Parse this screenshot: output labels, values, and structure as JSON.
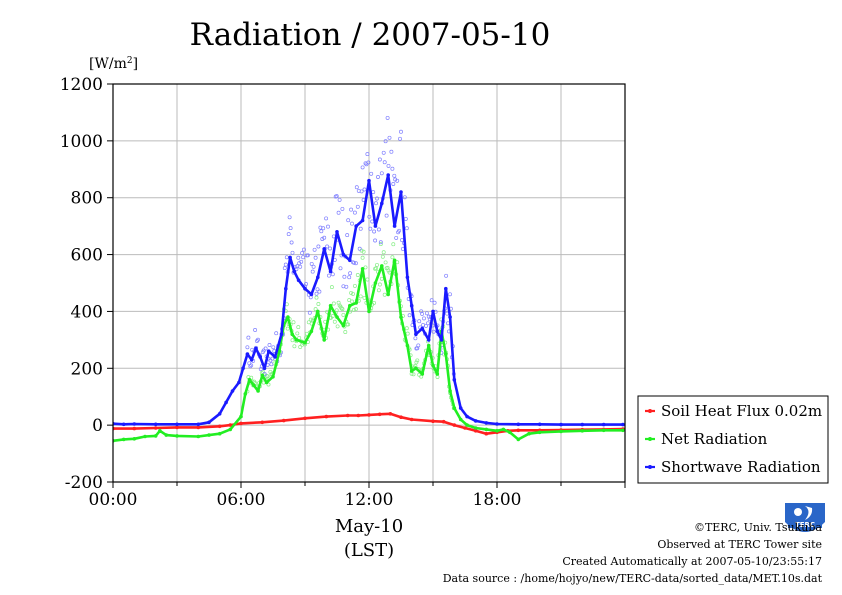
{
  "title": "Radiation / 2007-05-10",
  "footer": {
    "copyright": "©TERC, Univ. Tsukuba",
    "observed": "Observed at TERC Tower site",
    "created": "Created Automatically at 2007-05-10/23:55:17",
    "source": "Data source : /home/hojyo/new/TERC-data/sorted_data/MET.10s.dat",
    "logo_text": "TERC"
  },
  "colors": {
    "soil": "#ff2020",
    "net": "#22ee22",
    "shortwave": "#1a1aff",
    "shortwave_points": "#8080ff",
    "net_points": "#88ee88",
    "grid": "#bbbbbb",
    "logo": "#2a66c8"
  },
  "chart_data": {
    "type": "line",
    "title": "Radiation / 2007-05-10",
    "ylabel": "[W/m2]",
    "y_unit_main": "[W/m",
    "y_unit_sup": "2",
    "y_unit_close": "]",
    "xlabel": "May-10",
    "xlabel2": "(LST)",
    "ylim": [
      -200,
      1200
    ],
    "xlim": [
      0,
      24
    ],
    "yticks": [
      -200,
      0,
      200,
      400,
      600,
      800,
      1000,
      1200
    ],
    "yticklabels": [
      "-200",
      "0",
      "200",
      "400",
      "600",
      "800",
      "1000",
      "1200"
    ],
    "xticks": [
      0,
      6,
      12,
      18
    ],
    "xticklabels": [
      "00:00",
      "06:00",
      "12:00",
      "18:00"
    ],
    "grid": true,
    "legend_position": "bottom-right outside",
    "series": [
      {
        "name": "Soil Heat Flux 0.02m",
        "color_key": "soil",
        "x": [
          0,
          1,
          2,
          3,
          4,
          5,
          5.5,
          6,
          7,
          8,
          9,
          10,
          11,
          11.5,
          12,
          12.5,
          13,
          13.5,
          14,
          15,
          15.5,
          16,
          16.5,
          17,
          17.5,
          18,
          18.5,
          19,
          20,
          21,
          22,
          23,
          23.9
        ],
        "y": [
          -12,
          -12,
          -10,
          -8,
          -8,
          -4,
          0,
          6,
          10,
          16,
          24,
          30,
          34,
          34,
          36,
          38,
          40,
          28,
          20,
          14,
          12,
          0,
          -10,
          -20,
          -30,
          -25,
          -20,
          -18,
          -18,
          -17,
          -16,
          -15,
          -14
        ]
      },
      {
        "name": "Net Radiation",
        "color_key": "net",
        "x": [
          0,
          0.5,
          1,
          1.5,
          2,
          2.2,
          2.5,
          3,
          4,
          4.5,
          5,
          5.5,
          6,
          6.2,
          6.4,
          6.6,
          6.8,
          7,
          7.2,
          7.5,
          7.8,
          8,
          8.2,
          8.4,
          8.6,
          9,
          9.3,
          9.6,
          9.9,
          10.2,
          10.5,
          10.8,
          11.1,
          11.4,
          11.7,
          12,
          12.3,
          12.6,
          12.9,
          13.2,
          13.5,
          13.8,
          14,
          14.2,
          14.5,
          14.8,
          15,
          15.2,
          15.4,
          15.6,
          15.8,
          16,
          16.3,
          16.6,
          17,
          17.5,
          18,
          18.3,
          18.6,
          19,
          19.5,
          20,
          21,
          22,
          23,
          23.9
        ],
        "y": [
          -55,
          -50,
          -48,
          -40,
          -38,
          -20,
          -35,
          -38,
          -40,
          -35,
          -30,
          -15,
          30,
          110,
          160,
          140,
          120,
          175,
          150,
          170,
          260,
          350,
          380,
          320,
          300,
          290,
          330,
          400,
          300,
          420,
          380,
          350,
          420,
          430,
          550,
          400,
          500,
          560,
          460,
          580,
          380,
          280,
          190,
          200,
          180,
          280,
          210,
          180,
          330,
          250,
          120,
          60,
          20,
          0,
          -10,
          -15,
          -20,
          -15,
          -25,
          -50,
          -30,
          -25,
          -22,
          -20,
          -18,
          -18
        ]
      },
      {
        "name": "Shortwave Radiation",
        "color_key": "shortwave",
        "x": [
          0,
          0.5,
          1,
          2,
          3,
          4,
          4.5,
          5,
          5.3,
          5.6,
          5.9,
          6.1,
          6.3,
          6.5,
          6.7,
          6.9,
          7.1,
          7.3,
          7.6,
          7.9,
          8.1,
          8.3,
          8.5,
          8.7,
          9,
          9.3,
          9.6,
          9.9,
          10.2,
          10.5,
          10.8,
          11.1,
          11.4,
          11.7,
          12,
          12.3,
          12.6,
          12.9,
          13.2,
          13.5,
          13.8,
          14,
          14.2,
          14.5,
          14.8,
          15,
          15.2,
          15.4,
          15.6,
          15.8,
          16,
          16.3,
          16.6,
          17,
          17.5,
          18,
          19,
          20,
          21,
          22,
          23,
          23.9
        ],
        "y": [
          5,
          3,
          4,
          3,
          3,
          3,
          10,
          40,
          80,
          120,
          150,
          200,
          250,
          230,
          270,
          240,
          200,
          260,
          240,
          320,
          480,
          590,
          540,
          510,
          480,
          460,
          520,
          620,
          540,
          680,
          600,
          580,
          700,
          720,
          860,
          700,
          780,
          880,
          700,
          820,
          520,
          420,
          320,
          340,
          300,
          400,
          330,
          300,
          480,
          380,
          160,
          60,
          30,
          15,
          8,
          4,
          3,
          3,
          2,
          2,
          2,
          2
        ]
      }
    ]
  }
}
